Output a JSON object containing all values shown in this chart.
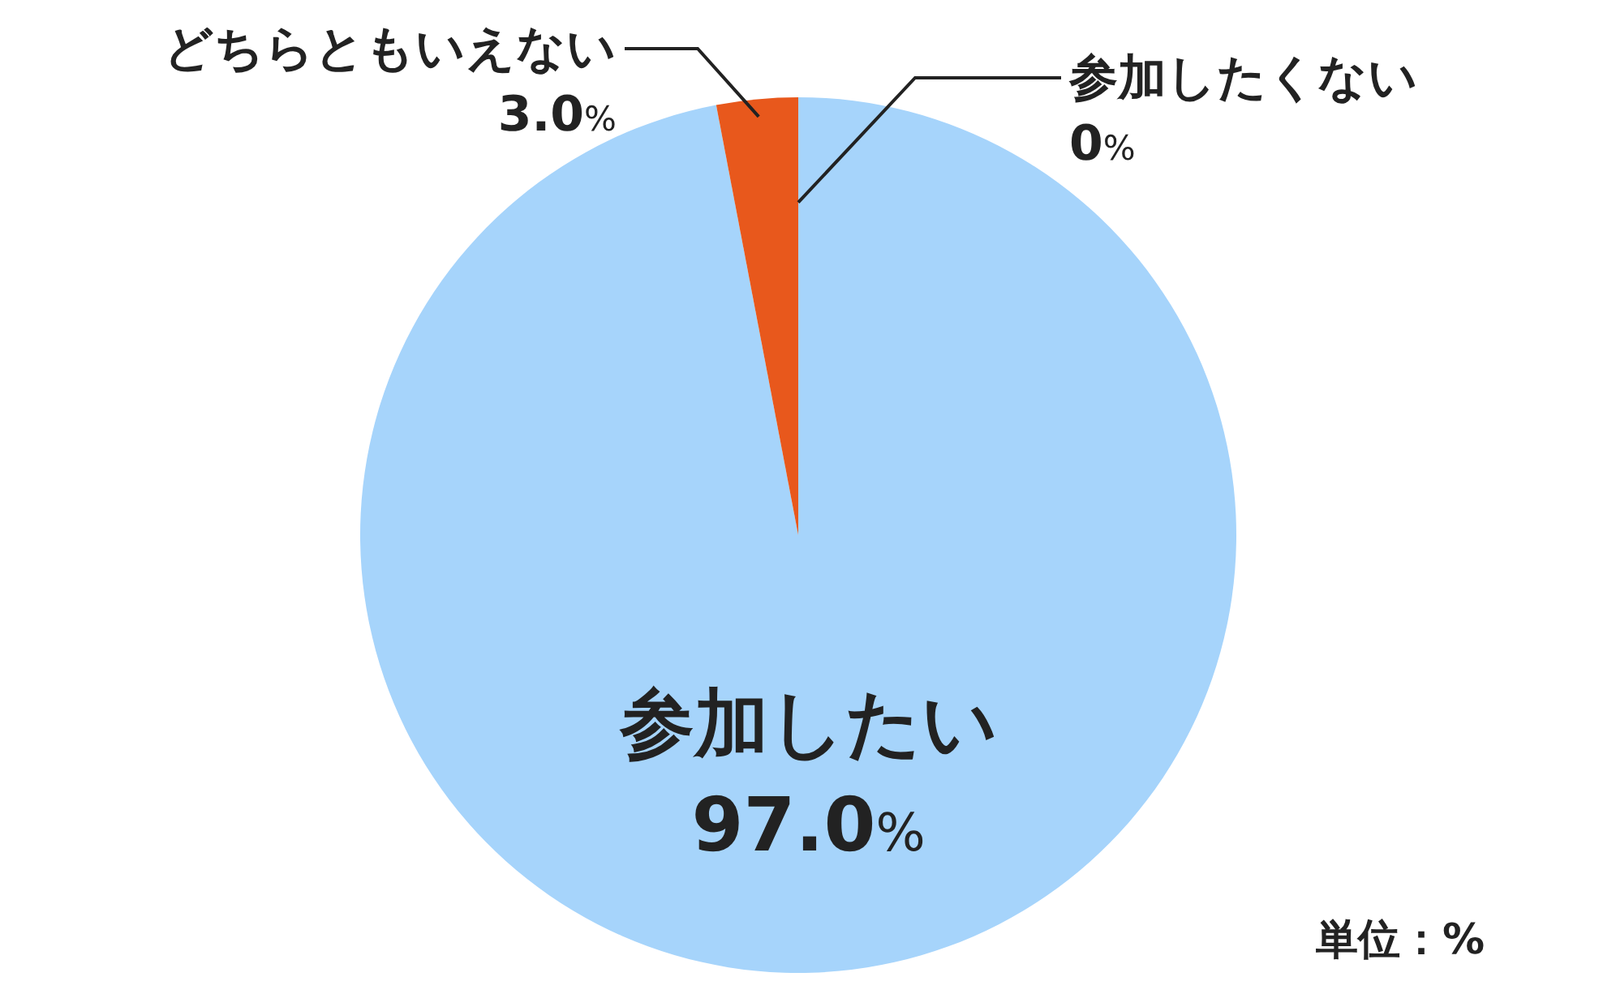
{
  "chart_data": {
    "type": "pie",
    "categories": [
      "参加したい",
      "どちらともいえない",
      "参加したくない"
    ],
    "values": [
      97.0,
      3.0,
      0
    ],
    "colors": [
      "#a6d4fb",
      "#e8581c",
      "#e8581c"
    ],
    "value_labels": [
      "97.0%",
      "3.0%",
      "0%"
    ],
    "annotations": [
      "単位：%"
    ]
  }
}
